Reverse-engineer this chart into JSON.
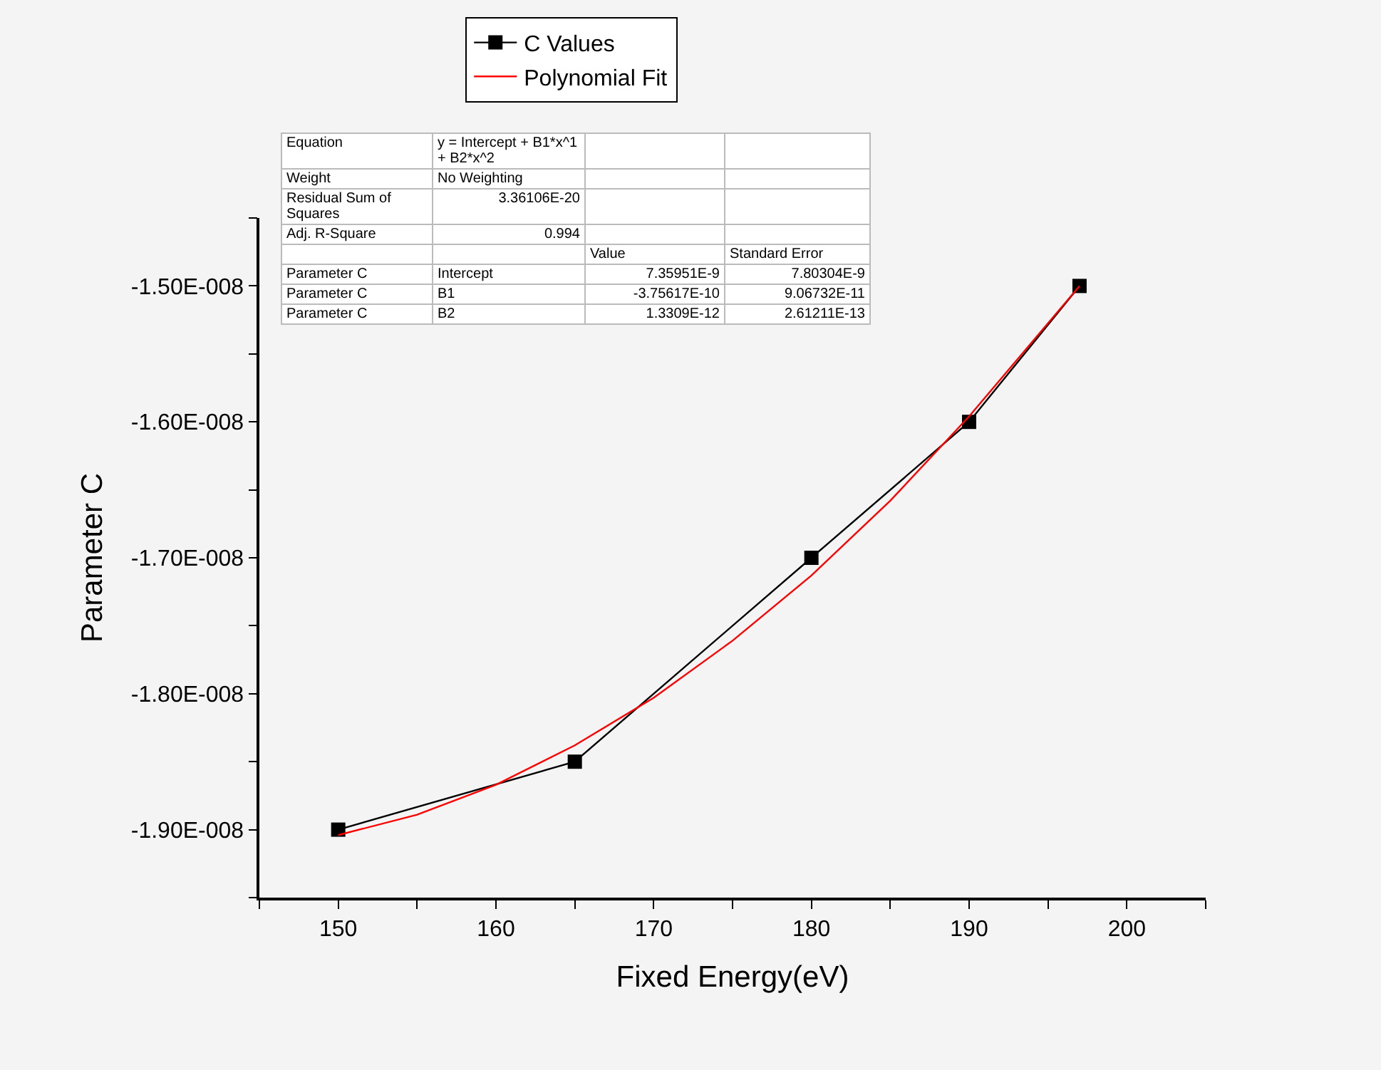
{
  "chart_data": {
    "type": "line",
    "xlabel": "Fixed Energy(eV)",
    "ylabel": "Parameter C",
    "series": [
      {
        "name": "C Values",
        "color": "#000000",
        "marker": "square",
        "x": [
          150,
          165,
          180,
          190,
          197
        ],
        "values": [
          -1.9e-08,
          -1.85e-08,
          -1.7e-08,
          -1.6e-08,
          -1.5e-08
        ]
      },
      {
        "name": "Polynomial Fit",
        "color": "#ff0000",
        "marker": "none",
        "x": [
          150,
          155,
          160,
          165,
          170,
          175,
          180,
          185,
          190,
          197
        ],
        "values": [
          -1.904e-08,
          -1.889e-08,
          -1.867e-08,
          -1.838e-08,
          -1.803e-08,
          -1.761e-08,
          -1.713e-08,
          -1.658e-08,
          -1.596e-08,
          -1.5e-08
        ]
      }
    ],
    "xlim": [
      145,
      205
    ],
    "xticks": [
      {
        "value": 145,
        "label": null
      },
      150,
      {
        "value": 155,
        "label": null
      },
      160,
      {
        "value": 165,
        "label": null
      },
      170,
      {
        "value": 175,
        "label": null
      },
      180,
      {
        "value": 185,
        "label": null
      },
      190,
      {
        "value": 195,
        "label": null
      },
      200,
      {
        "value": 205,
        "label": null
      }
    ],
    "ylim": [
      -1.95e-08,
      -1.45e-08
    ],
    "yticks": [
      {
        "value": -1.95e-08,
        "label": null
      },
      {
        "value": -1.9e-08,
        "label": "-1.90E-008"
      },
      {
        "value": -1.85e-08,
        "label": null
      },
      {
        "value": -1.8e-08,
        "label": "-1.80E-008"
      },
      {
        "value": -1.75e-08,
        "label": null
      },
      {
        "value": -1.7e-08,
        "label": "-1.70E-008"
      },
      {
        "value": -1.65e-08,
        "label": null
      },
      {
        "value": -1.6e-08,
        "label": "-1.60E-008"
      },
      {
        "value": -1.55e-08,
        "label": null
      },
      {
        "value": -1.5e-08,
        "label": "-1.50E-008"
      },
      {
        "value": -1.45e-08,
        "label": null
      }
    ],
    "grid": false,
    "legend": "top",
    "line_style": "solid",
    "annotations": [
      "Equation",
      "y = Intercept + B1*x^1 + B2*x^2",
      "Weight",
      "No Weighting",
      "Residual Sum of Squares",
      "3.36106E-20",
      "Adj. R-Square",
      "0.994",
      "Value",
      "Standard Error",
      "Parameter C",
      "Intercept",
      "7.35951E-9",
      "7.80304E-9",
      "Parameter C",
      "B1",
      "-3.75617E-10",
      "9.06732E-11",
      "Parameter C",
      "B2",
      "1.3309E-12",
      "2.61211E-13"
    ]
  }
}
